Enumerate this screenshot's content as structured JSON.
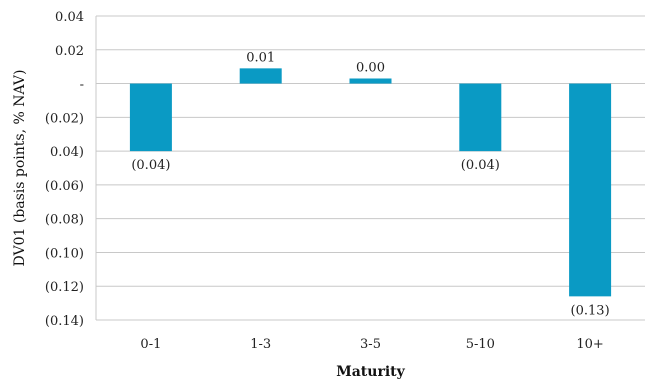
{
  "chart_data": {
    "type": "bar",
    "title": "",
    "xlabel": "Maturity",
    "ylabel": "DV01 (basis points, % NAV)",
    "categories": [
      "0-1",
      "1-3",
      "3-5",
      "5-10",
      "10+"
    ],
    "values": [
      -0.04,
      0.009,
      0.003,
      -0.04,
      -0.126
    ],
    "data_labels": [
      "(0.04)",
      "0.01",
      "0.00",
      "(0.04)",
      "(0.13)"
    ],
    "ylim": [
      -0.14,
      0.04
    ],
    "yticks": [
      0.04,
      0.02,
      0,
      -0.02,
      -0.04,
      -0.06,
      -0.08,
      -0.1,
      -0.12,
      -0.14
    ],
    "ytick_labels": [
      "0.04",
      "0.02",
      "-",
      "(0.02)",
      "0.04)",
      "(0.06)",
      "(0.08)",
      "(0.10)",
      "(0.12)",
      "(0.14)"
    ],
    "grid": true,
    "legend": "none",
    "bar_color": "#0a9ac4",
    "grid_color": "#c8c8c8"
  }
}
